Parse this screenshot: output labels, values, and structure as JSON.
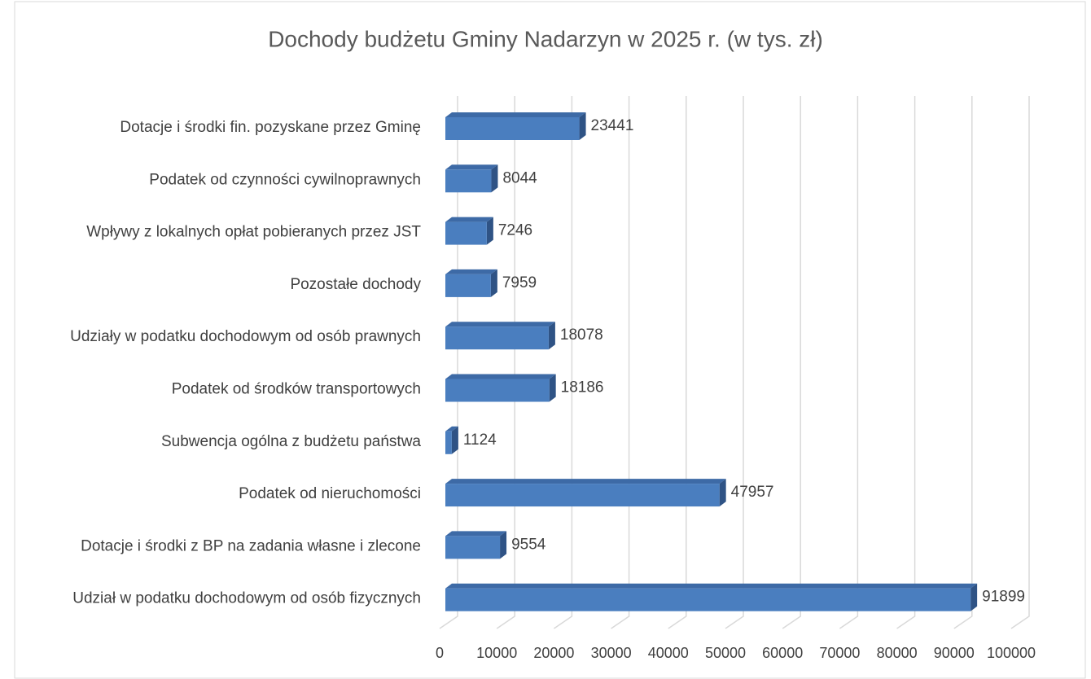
{
  "chart_data": {
    "type": "bar",
    "orientation": "horizontal",
    "title": "Dochody budżetu Gminy Nadarzyn w 2025 r. (w tys. zł)",
    "categories": [
      "Dotacje i środki fin. pozyskane przez Gminę",
      "Podatek od czynności cywilnoprawnych",
      "Wpływy z lokalnych opłat pobieranych przez JST",
      "Pozostałe dochody",
      "Udziały w podatku dochodowym od osób prawnych",
      "Podatek od środków transportowych",
      "Subwencja ogólna z budżetu państwa",
      "Podatek od nieruchomości",
      "Dotacje i środki z BP na zadania własne i zlecone",
      "Udział w podatku dochodowym od osób fizycznych"
    ],
    "values": [
      23441,
      8044,
      7246,
      7959,
      18078,
      18186,
      1124,
      47957,
      9554,
      91899
    ],
    "color": "#4a7ebf",
    "xlim": [
      0,
      100000
    ],
    "xticks": [
      0,
      10000,
      20000,
      30000,
      40000,
      50000,
      60000,
      70000,
      80000,
      90000,
      100000
    ],
    "grid": true
  }
}
